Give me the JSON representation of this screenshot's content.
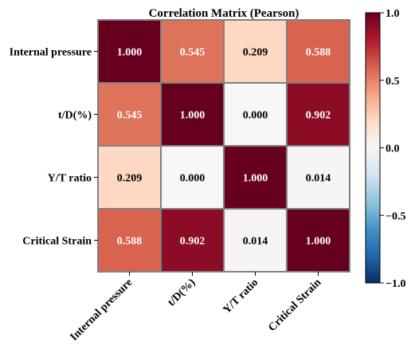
{
  "chart_data": {
    "type": "heatmap",
    "title": "Correlation Matrix (Pearson)",
    "row_labels": [
      "Internal pressure",
      "t/D(%)",
      "Y/T ratio",
      "Critical Strain"
    ],
    "col_labels": [
      "Internal pressure",
      "t/D(%)",
      "Y/T ratio",
      "Critical Strain"
    ],
    "matrix": [
      [
        1.0,
        0.545,
        0.209,
        0.588
      ],
      [
        0.545,
        1.0,
        0.0,
        0.902
      ],
      [
        0.209,
        0.0,
        1.0,
        0.014
      ],
      [
        0.588,
        0.902,
        0.014,
        1.0
      ]
    ],
    "value_format": "0.000",
    "colormap": "RdBu_r",
    "colorbar": {
      "range": [
        -1.0,
        1.0
      ],
      "ticks": [
        1.0,
        0.5,
        0.0,
        -0.5,
        -1.0
      ],
      "tick_labels": [
        "1.0",
        "0.5",
        "0.0",
        "−0.5",
        "−1.0"
      ]
    },
    "cell_border_color": "#808080"
  }
}
